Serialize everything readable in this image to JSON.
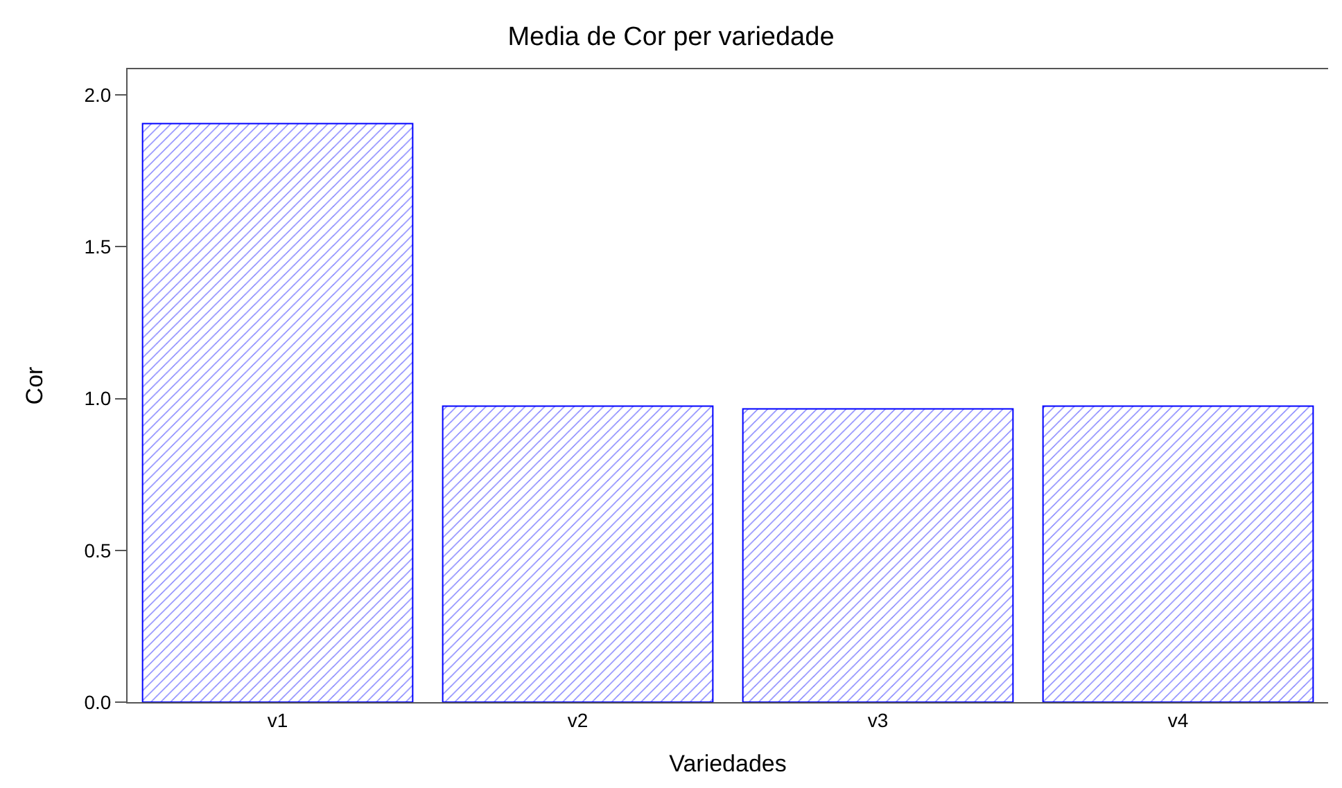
{
  "chart_data": {
    "type": "bar",
    "title": "Media de Cor per variedade",
    "xlabel": "Variedades",
    "ylabel": "Cor",
    "categories": [
      "v1",
      "v2",
      "v3",
      "v4"
    ],
    "values": [
      1.906,
      0.975,
      0.966,
      0.975
    ],
    "color": "#0000ff",
    "grid": false,
    "ylim": [
      0,
      2.085
    ],
    "yticks": [
      {
        "value": 0,
        "label": "0.0"
      },
      {
        "value": 0.5,
        "label": "0.5"
      },
      {
        "value": 1,
        "label": "1.0"
      },
      {
        "value": 1.5,
        "label": "1.5"
      },
      {
        "value": 2,
        "label": "2.0"
      }
    ]
  }
}
